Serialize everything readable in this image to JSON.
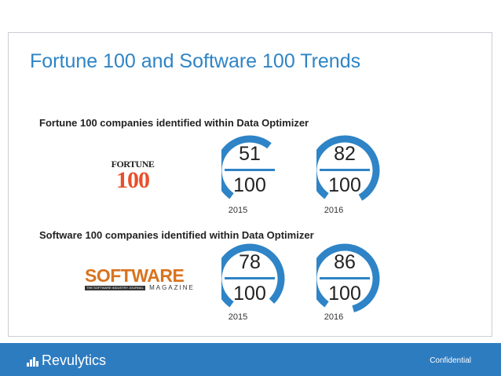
{
  "slide": {
    "title": "Fortune 100 and Software 100 Trends",
    "accent_color": "#2e84c6",
    "sections": [
      {
        "heading": "Fortune 100 companies identified within Data Optimizer",
        "logo": {
          "top": "FORTUNE",
          "main": "100"
        },
        "gauges": [
          {
            "numerator": "51",
            "denominator": "100",
            "year": "2015",
            "fraction": 0.51
          },
          {
            "numerator": "82",
            "denominator": "100",
            "year": "2016",
            "fraction": 0.82
          }
        ]
      },
      {
        "heading": "Software 100 companies identified within Data Optimizer",
        "logo": {
          "main": "SOFTWARE",
          "sub_tag": "THE SOFTWARE INDUSTRY JOURNAL",
          "sub": "MAGAZINE"
        },
        "gauges": [
          {
            "numerator": "78",
            "denominator": "100",
            "year": "2015",
            "fraction": 0.78
          },
          {
            "numerator": "86",
            "denominator": "100",
            "year": "2016",
            "fraction": 0.86
          }
        ]
      }
    ]
  },
  "footer": {
    "brand": "Revulytics",
    "confidential": "Confidential",
    "background_color": "#2e7cc0"
  }
}
